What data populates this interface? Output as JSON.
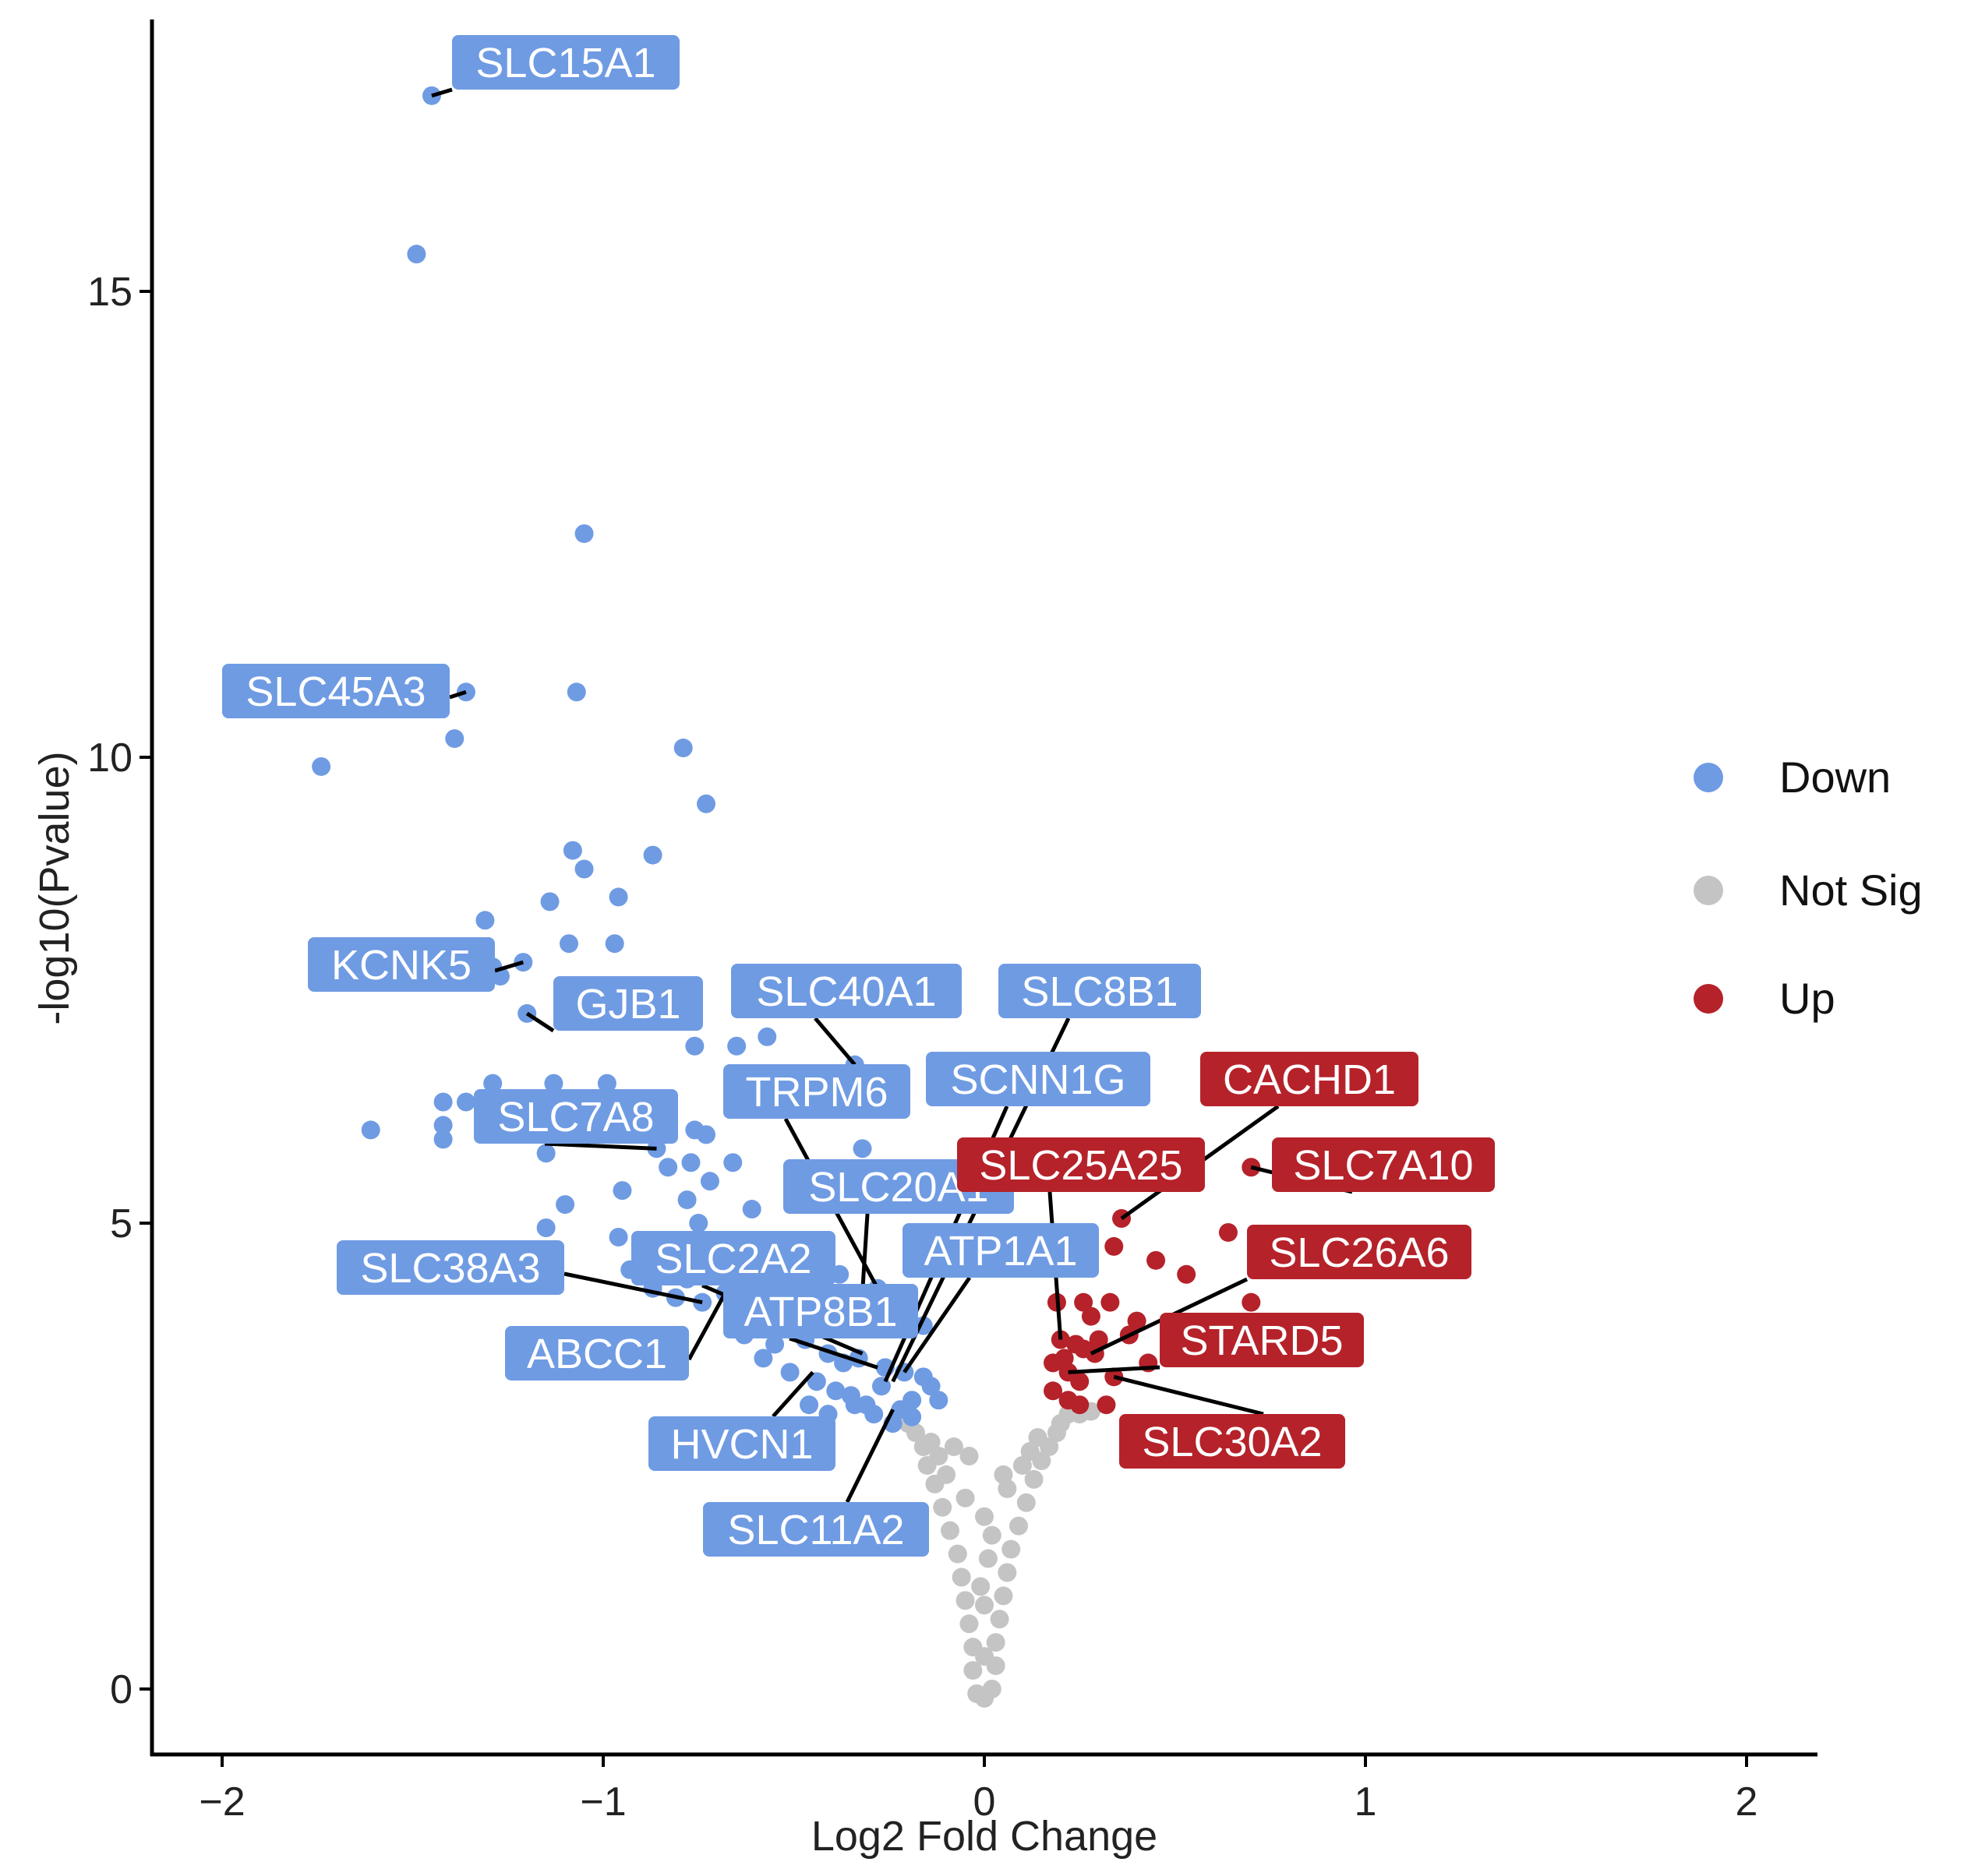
{
  "chart_data": {
    "type": "scatter",
    "title": "",
    "xlabel": "Log2 Fold Change",
    "ylabel": "-log10(Pvalue)",
    "xlim": [
      -2.2,
      2.2
    ],
    "ylim": [
      -0.6,
      17.5
    ],
    "x_ticks": [
      -2,
      -1,
      0,
      1,
      2
    ],
    "y_ticks": [
      0,
      5,
      10,
      15
    ],
    "grid": false,
    "legend_position": "right",
    "colors": {
      "Down": "#6f9be3",
      "Not Sig": "#c4c4c4",
      "Up": "#b5222a"
    },
    "legend": [
      "Down",
      "Not Sig",
      "Up"
    ],
    "series": [
      {
        "name": "Down",
        "points": [
          [
            -1.45,
            17.1
          ],
          [
            -1.49,
            15.4
          ],
          [
            -1.05,
            12.4
          ],
          [
            -1.36,
            10.7
          ],
          [
            -1.07,
            10.7
          ],
          [
            -1.39,
            10.2
          ],
          [
            -0.79,
            10.1
          ],
          [
            -1.74,
            9.9
          ],
          [
            -0.73,
            9.5
          ],
          [
            -1.08,
            9.0
          ],
          [
            -0.87,
            8.95
          ],
          [
            -1.05,
            8.8
          ],
          [
            -0.96,
            8.5
          ],
          [
            -1.31,
            8.25
          ],
          [
            -1.14,
            8.45
          ],
          [
            -1.09,
            8.0
          ],
          [
            -0.97,
            8.0
          ],
          [
            -1.29,
            7.75
          ],
          [
            -1.21,
            7.8
          ],
          [
            -1.27,
            7.65
          ],
          [
            -1.2,
            7.25
          ],
          [
            -0.76,
            6.9
          ],
          [
            -0.65,
            6.9
          ],
          [
            -0.57,
            7.0
          ],
          [
            -1.29,
            6.5
          ],
          [
            -1.13,
            6.5
          ],
          [
            -0.99,
            6.5
          ],
          [
            -1.42,
            6.3
          ],
          [
            -1.36,
            6.3
          ],
          [
            -1.61,
            6.0
          ],
          [
            -1.42,
            6.05
          ],
          [
            -1.42,
            5.9
          ],
          [
            -0.76,
            6.0
          ],
          [
            -0.73,
            5.95
          ],
          [
            -0.86,
            5.8
          ],
          [
            -1.15,
            5.75
          ],
          [
            -0.83,
            5.6
          ],
          [
            -0.66,
            5.65
          ],
          [
            -0.77,
            5.65
          ],
          [
            -0.72,
            5.45
          ],
          [
            -0.95,
            5.35
          ],
          [
            -0.78,
            5.25
          ],
          [
            -1.1,
            5.2
          ],
          [
            -0.61,
            5.15
          ],
          [
            -1.15,
            4.95
          ],
          [
            -0.75,
            5.0
          ],
          [
            -0.96,
            4.85
          ],
          [
            -0.87,
            4.75
          ],
          [
            -0.93,
            4.5
          ],
          [
            -0.78,
            4.4
          ],
          [
            -0.81,
            4.6
          ],
          [
            -0.87,
            4.3
          ],
          [
            -0.81,
            4.2
          ],
          [
            -0.74,
            4.15
          ],
          [
            -0.68,
            4.25
          ],
          [
            -0.61,
            4.1
          ],
          [
            -0.58,
            4.3
          ],
          [
            -0.52,
            4.35
          ],
          [
            -0.45,
            4.4
          ],
          [
            -0.38,
            4.45
          ],
          [
            -0.32,
            4.25
          ],
          [
            -0.28,
            4.3
          ],
          [
            -0.21,
            4.1
          ],
          [
            -0.16,
            3.9
          ],
          [
            -0.63,
            3.8
          ],
          [
            -0.55,
            3.7
          ],
          [
            -0.47,
            3.75
          ],
          [
            -0.41,
            3.6
          ],
          [
            -0.37,
            3.5
          ],
          [
            -0.33,
            3.55
          ],
          [
            -0.26,
            3.45
          ],
          [
            -0.21,
            3.4
          ],
          [
            -0.16,
            3.35
          ],
          [
            -0.58,
            3.55
          ],
          [
            -0.51,
            3.4
          ],
          [
            -0.44,
            3.3
          ],
          [
            -0.39,
            3.2
          ],
          [
            -0.35,
            3.15
          ],
          [
            -0.31,
            3.05
          ],
          [
            -0.27,
            3.25
          ],
          [
            -0.22,
            3.0
          ],
          [
            -0.14,
            3.25
          ],
          [
            -0.12,
            3.1
          ],
          [
            -0.46,
            3.05
          ],
          [
            -0.41,
            2.95
          ],
          [
            -0.34,
            3.05
          ],
          [
            -0.29,
            2.95
          ],
          [
            -0.24,
            2.85
          ],
          [
            -0.19,
            3.1
          ],
          [
            -0.19,
            2.92
          ],
          [
            -0.32,
            5.8
          ],
          [
            -0.34,
            6.7
          ]
        ]
      },
      {
        "name": "Not Sig",
        "points": [
          [
            -0.02,
            -0.05
          ],
          [
            0.0,
            -0.1
          ],
          [
            0.02,
            0.0
          ],
          [
            -0.03,
            0.2
          ],
          [
            0.03,
            0.25
          ],
          [
            -0.03,
            0.45
          ],
          [
            0.03,
            0.5
          ],
          [
            -0.04,
            0.7
          ],
          [
            0.04,
            0.75
          ],
          [
            -0.05,
            0.95
          ],
          [
            0.05,
            1.0
          ],
          [
            -0.06,
            1.2
          ],
          [
            0.06,
            1.25
          ],
          [
            -0.07,
            1.45
          ],
          [
            0.07,
            1.5
          ],
          [
            -0.09,
            1.7
          ],
          [
            0.09,
            1.75
          ],
          [
            -0.11,
            1.95
          ],
          [
            0.11,
            2.0
          ],
          [
            -0.13,
            2.2
          ],
          [
            0.13,
            2.25
          ],
          [
            -0.15,
            2.4
          ],
          [
            0.15,
            2.45
          ],
          [
            -0.16,
            2.6
          ],
          [
            0.17,
            2.6
          ],
          [
            -0.18,
            2.75
          ],
          [
            0.19,
            2.75
          ],
          [
            -0.2,
            2.85
          ],
          [
            0.2,
            2.85
          ],
          [
            -0.23,
            2.9
          ],
          [
            0.22,
            2.95
          ],
          [
            0.25,
            2.95
          ],
          [
            0.28,
            2.98
          ],
          [
            -0.04,
            2.5
          ],
          [
            0.05,
            2.3
          ],
          [
            -0.08,
            2.6
          ],
          [
            0.0,
            0.35
          ],
          [
            0.0,
            0.9
          ],
          [
            0.01,
            1.4
          ],
          [
            0.0,
            1.85
          ],
          [
            -0.01,
            1.1
          ],
          [
            0.02,
            1.65
          ],
          [
            -0.05,
            2.05
          ],
          [
            0.06,
            2.15
          ],
          [
            -0.1,
            2.3
          ],
          [
            0.1,
            2.4
          ],
          [
            -0.12,
            2.5
          ],
          [
            0.12,
            2.55
          ],
          [
            -0.14,
            2.65
          ],
          [
            0.14,
            2.7
          ]
        ]
      },
      {
        "name": "Up",
        "points": [
          [
            0.7,
            5.6
          ],
          [
            0.36,
            5.05
          ],
          [
            0.64,
            4.9
          ],
          [
            0.34,
            4.75
          ],
          [
            0.45,
            4.6
          ],
          [
            0.53,
            4.45
          ],
          [
            0.19,
            4.15
          ],
          [
            0.26,
            4.15
          ],
          [
            0.33,
            4.15
          ],
          [
            0.28,
            4.0
          ],
          [
            0.4,
            3.95
          ],
          [
            0.38,
            3.8
          ],
          [
            0.7,
            4.15
          ],
          [
            0.2,
            3.75
          ],
          [
            0.24,
            3.7
          ],
          [
            0.29,
            3.6
          ],
          [
            0.3,
            3.75
          ],
          [
            0.43,
            3.5
          ],
          [
            0.18,
            3.5
          ],
          [
            0.22,
            3.4
          ],
          [
            0.25,
            3.3
          ],
          [
            0.34,
            3.35
          ],
          [
            0.18,
            3.2
          ],
          [
            0.22,
            3.1
          ],
          [
            0.25,
            3.05
          ],
          [
            0.32,
            3.05
          ],
          [
            0.21,
            3.55
          ],
          [
            0.26,
            3.65
          ]
        ]
      }
    ],
    "annotations": [
      {
        "label": "SLC15A1",
        "group": "Up_or_Down",
        "color": "Down",
        "x": -1.45,
        "y": 17.1
      },
      {
        "label": "SLC45A3",
        "color": "Down",
        "x": -1.36,
        "y": 10.7
      },
      {
        "label": "KCNK5",
        "color": "Down",
        "x": -1.21,
        "y": 7.8
      },
      {
        "label": "GJB1",
        "color": "Down",
        "x": -1.2,
        "y": 7.25
      },
      {
        "label": "SLC40A1",
        "color": "Down",
        "x": -0.34,
        "y": 6.7
      },
      {
        "label": "SLC8B1",
        "color": "Down",
        "x": -0.24,
        "y": 3.3
      },
      {
        "label": "TRPM6",
        "color": "Down",
        "x": -0.28,
        "y": 4.3
      },
      {
        "label": "SCNN1G",
        "color": "Down",
        "x": -0.26,
        "y": 3.3
      },
      {
        "label": "SLC7A8",
        "color": "Down",
        "x": -0.86,
        "y": 5.8
      },
      {
        "label": "SLC20A1",
        "color": "Down",
        "x": -0.32,
        "y": 4.25
      },
      {
        "label": "ATP1A1",
        "color": "Down",
        "x": -0.21,
        "y": 3.4
      },
      {
        "label": "SLC38A3",
        "color": "Down",
        "x": -0.74,
        "y": 4.15
      },
      {
        "label": "SLC2A2",
        "color": "Down",
        "x": -0.32,
        "y": 3.6
      },
      {
        "label": "ATP8B1",
        "color": "Down",
        "x": -0.28,
        "y": 3.45
      },
      {
        "label": "ABCC1",
        "color": "Down",
        "x": -0.68,
        "y": 4.25
      },
      {
        "label": "HVCN1",
        "color": "Down",
        "x": -0.45,
        "y": 3.4
      },
      {
        "label": "SLC11A2",
        "color": "Down",
        "x": -0.24,
        "y": 3.0
      },
      {
        "label": "CACHD1",
        "color": "Up",
        "x": 0.36,
        "y": 5.05
      },
      {
        "label": "SLC25A25",
        "color": "Up",
        "x": 0.2,
        "y": 3.75
      },
      {
        "label": "SLC7A10",
        "color": "Up",
        "x": 0.7,
        "y": 5.6
      },
      {
        "label": "SLC26A6",
        "color": "Up",
        "x": 0.28,
        "y": 3.6
      },
      {
        "label": "STARD5",
        "color": "Up",
        "x": 0.22,
        "y": 3.4
      },
      {
        "label": "SLC30A2",
        "color": "Up",
        "x": 0.34,
        "y": 3.35
      }
    ]
  }
}
